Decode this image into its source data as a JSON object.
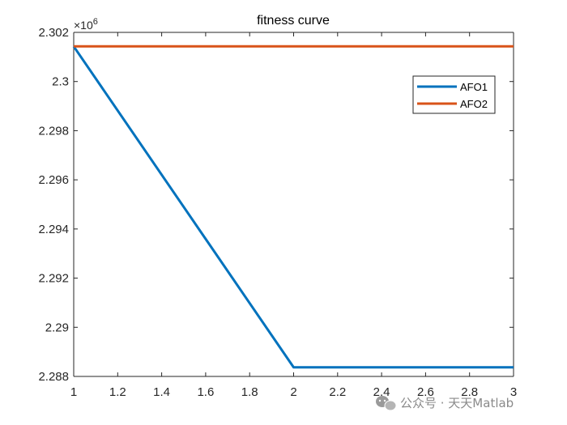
{
  "chart_data": {
    "type": "line",
    "title": "fitness curve",
    "xlabel": "",
    "ylabel": "",
    "x": [
      1,
      2,
      3
    ],
    "xlim": [
      1,
      3
    ],
    "ylim": [
      2.288,
      2.302
    ],
    "x_ticks": [
      "1",
      "1.2",
      "1.4",
      "1.6",
      "1.8",
      "2",
      "2.2",
      "2.4",
      "2.6",
      "2.8",
      "3"
    ],
    "y_ticks": [
      "2.288",
      "2.29",
      "2.292",
      "2.294",
      "2.296",
      "2.298",
      "2.3",
      "2.302"
    ],
    "y_exponent": {
      "base": "×10",
      "power": "6"
    },
    "grid": false,
    "legend_position": "top-right",
    "series": [
      {
        "name": "AFO1",
        "color": "#0072BD",
        "values": [
          2.30143,
          2.28837,
          2.28837
        ]
      },
      {
        "name": "AFO2",
        "color": "#D95319",
        "values": [
          2.30143,
          2.30143,
          2.30143
        ]
      }
    ]
  },
  "watermark": {
    "text": "公众号 · 天天Matlab",
    "icon": "wechat-icon"
  }
}
